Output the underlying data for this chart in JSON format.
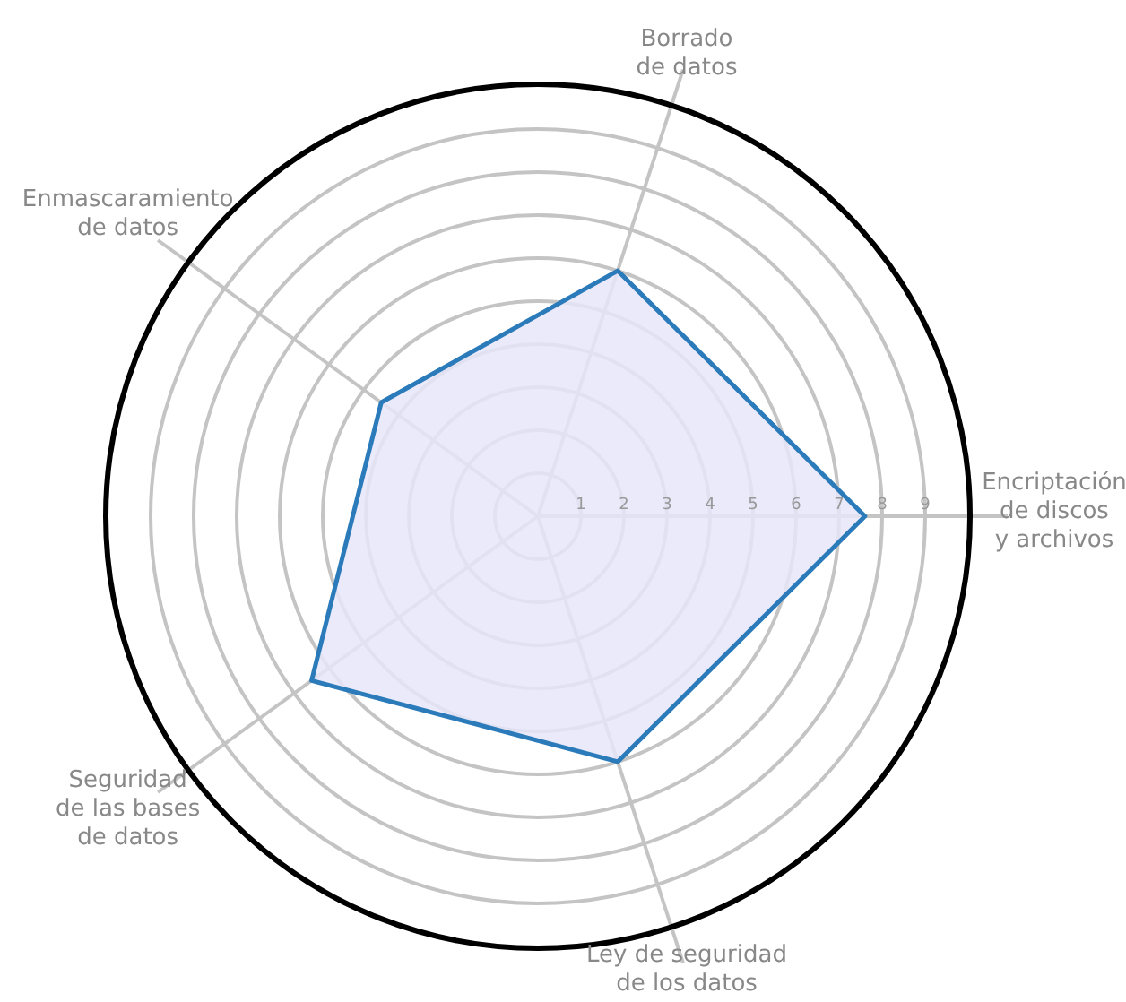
{
  "chart_data": {
    "type": "radar",
    "categories": [
      "Borrado\nde datos",
      "Encriptación\nde discos\ny archivos",
      "Ley de seguridad\nde los datos",
      "Seguridad\nde las bases\nde datos",
      "Enmascaramiento\nde datos"
    ],
    "series": [
      {
        "color": "#2b7bba",
        "values": [
          6,
          7.6,
          6,
          6.5,
          4.5
        ]
      }
    ],
    "ylim": [
      0,
      10
    ],
    "yticks": [
      1,
      2,
      3,
      4,
      5,
      6,
      7,
      8,
      9
    ],
    "grid": true
  }
}
